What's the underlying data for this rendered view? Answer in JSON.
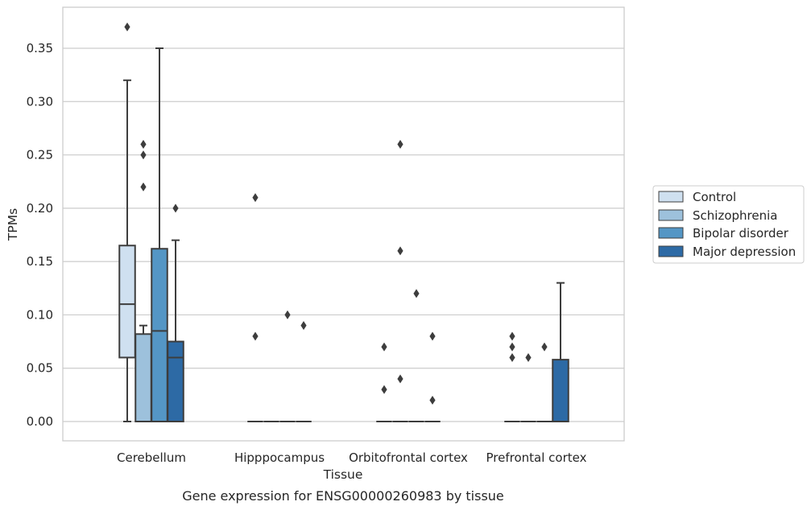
{
  "chart_data": {
    "type": "box",
    "title": "",
    "caption": "Gene expression for ENSG00000260983 by tissue",
    "xlabel": "Tissue",
    "ylabel": "TPMs",
    "ylim": [
      -0.018,
      0.388
    ],
    "yticks": [
      "0.00",
      "0.05",
      "0.10",
      "0.15",
      "0.20",
      "0.25",
      "0.30",
      "0.35"
    ],
    "ytick_values": [
      0,
      0.05,
      0.1,
      0.15,
      0.2,
      0.25,
      0.3,
      0.35
    ],
    "grid": "horizontal",
    "legend_position": "right",
    "categories": [
      "Cerebellum",
      "Hipppocampus",
      "Orbitofrontal cortex",
      "Prefrontal cortex"
    ],
    "series": [
      {
        "name": "Control",
        "color": "#cfe0f0",
        "boxes": [
          {
            "whislo": 0.0,
            "q1": 0.06,
            "med": 0.11,
            "q3": 0.165,
            "whishi": 0.32,
            "fliers": [
              0.37
            ]
          },
          {
            "whislo": 0.0,
            "q1": 0.0,
            "med": 0.0,
            "q3": 0.0,
            "whishi": 0.0,
            "fliers": [
              0.21,
              0.08
            ]
          },
          {
            "whislo": 0.0,
            "q1": 0.0,
            "med": 0.0,
            "q3": 0.0,
            "whishi": 0.0,
            "fliers": [
              0.07,
              0.03
            ]
          },
          {
            "whislo": 0.0,
            "q1": 0.0,
            "med": 0.0,
            "q3": 0.0,
            "whishi": 0.0,
            "fliers": [
              0.08,
              0.07,
              0.06
            ]
          }
        ]
      },
      {
        "name": "Schizophrenia",
        "color": "#9dc1dc",
        "boxes": [
          {
            "whislo": 0.0,
            "q1": 0.0,
            "med": 0.0,
            "q3": 0.082,
            "whishi": 0.09,
            "fliers": [
              0.26,
              0.25,
              0.22
            ]
          },
          {
            "whislo": 0.0,
            "q1": 0.0,
            "med": 0.0,
            "q3": 0.0,
            "whishi": 0.0,
            "fliers": []
          },
          {
            "whislo": 0.0,
            "q1": 0.0,
            "med": 0.0,
            "q3": 0.0,
            "whishi": 0.0,
            "fliers": [
              0.26,
              0.16,
              0.04
            ]
          },
          {
            "whislo": 0.0,
            "q1": 0.0,
            "med": 0.0,
            "q3": 0.0,
            "whishi": 0.0,
            "fliers": [
              0.06
            ]
          }
        ]
      },
      {
        "name": "Bipolar disorder",
        "color": "#5496c5",
        "boxes": [
          {
            "whislo": 0.0,
            "q1": 0.0,
            "med": 0.085,
            "q3": 0.162,
            "whishi": 0.35,
            "fliers": []
          },
          {
            "whislo": 0.0,
            "q1": 0.0,
            "med": 0.0,
            "q3": 0.0,
            "whishi": 0.0,
            "fliers": [
              0.1
            ]
          },
          {
            "whislo": 0.0,
            "q1": 0.0,
            "med": 0.0,
            "q3": 0.0,
            "whishi": 0.0,
            "fliers": [
              0.12
            ]
          },
          {
            "whislo": 0.0,
            "q1": 0.0,
            "med": 0.0,
            "q3": 0.0,
            "whishi": 0.0,
            "fliers": [
              0.07
            ]
          }
        ]
      },
      {
        "name": "Major depression",
        "color": "#2d6aa5",
        "boxes": [
          {
            "whislo": 0.0,
            "q1": 0.0,
            "med": 0.06,
            "q3": 0.075,
            "whishi": 0.17,
            "fliers": [
              0.2
            ]
          },
          {
            "whislo": 0.0,
            "q1": 0.0,
            "med": 0.0,
            "q3": 0.0,
            "whishi": 0.0,
            "fliers": [
              0.09
            ]
          },
          {
            "whislo": 0.0,
            "q1": 0.0,
            "med": 0.0,
            "q3": 0.0,
            "whishi": 0.0,
            "fliers": [
              0.08,
              0.02
            ]
          },
          {
            "whislo": 0.0,
            "q1": 0.0,
            "med": 0.0,
            "q3": 0.058,
            "whishi": 0.13,
            "fliers": []
          }
        ]
      }
    ],
    "colors": {
      "line": "#3d3d3d",
      "grid": "#cccccc",
      "frame": "#cccccc"
    }
  }
}
